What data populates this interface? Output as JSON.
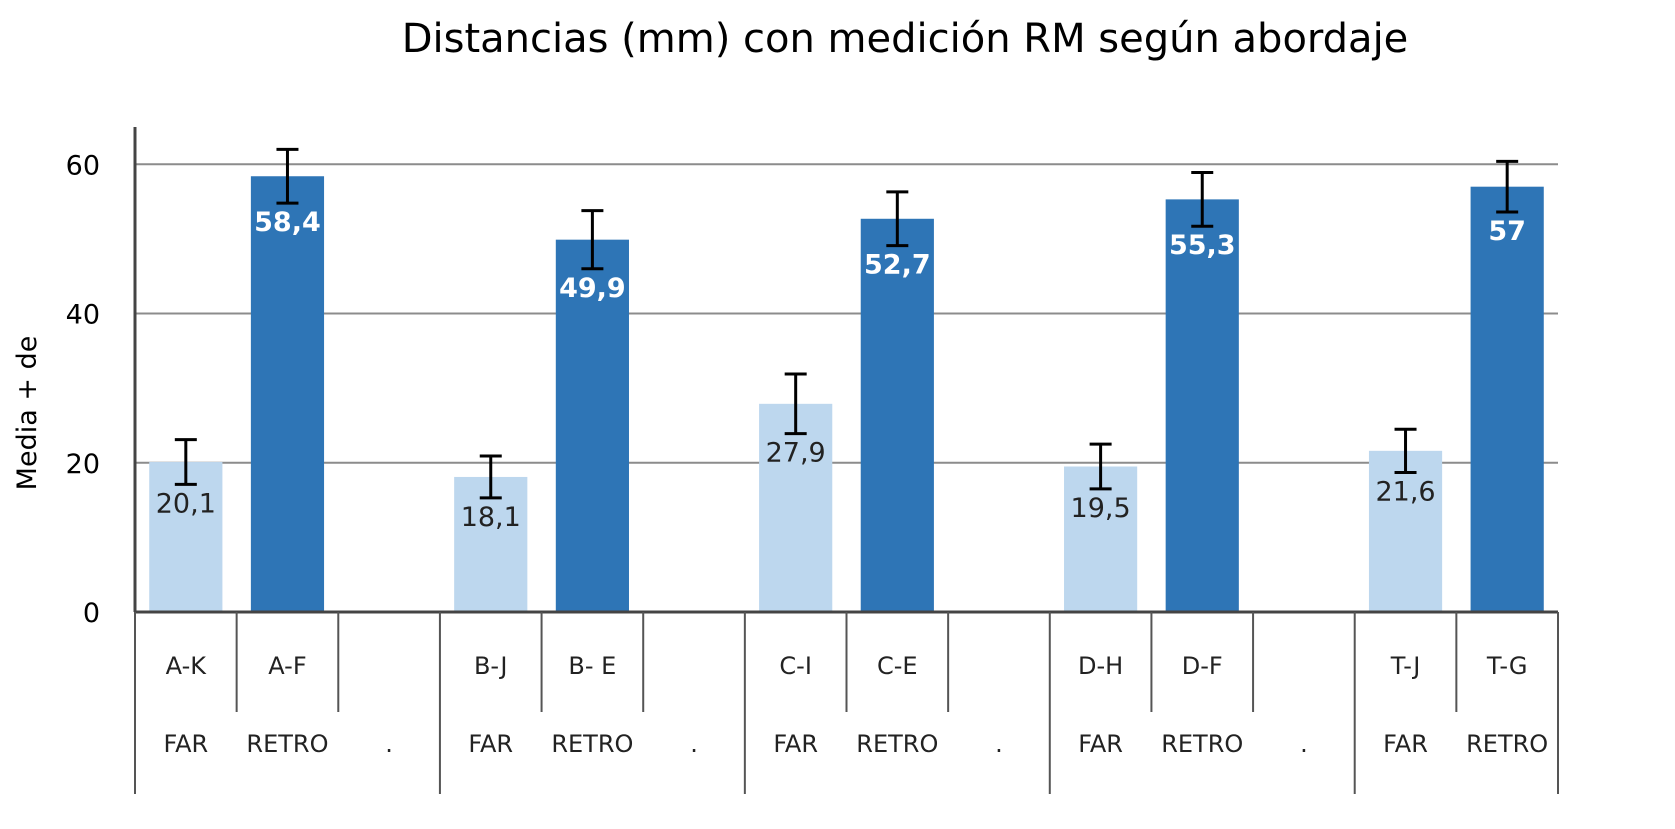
{
  "chart_data": {
    "type": "bar",
    "title": "Distancias (mm) con medición RM según abordaje",
    "ylabel": "Media + de",
    "xlabel": "",
    "ylim": [
      0,
      65
    ],
    "yticks": [
      0,
      20,
      40,
      60
    ],
    "grid": true,
    "colors": {
      "FAR": "#bdd7ee",
      "RETRO": "#2e75b6",
      "error": "#000000"
    },
    "slots": [
      {
        "label": "A-K",
        "group": "FAR",
        "value": 20.1,
        "error": 3.0,
        "data_label": "20,1"
      },
      {
        "label": "A-F",
        "group": "RETRO",
        "value": 58.4,
        "error": 3.6,
        "data_label": "58,4"
      },
      {
        "label": "",
        "group": ".",
        "value": null,
        "error": null,
        "data_label": ""
      },
      {
        "label": "B-J",
        "group": "FAR",
        "value": 18.1,
        "error": 2.8,
        "data_label": "18,1"
      },
      {
        "label": "B- E",
        "group": "RETRO",
        "value": 49.9,
        "error": 3.9,
        "data_label": "49,9"
      },
      {
        "label": "",
        "group": ".",
        "value": null,
        "error": null,
        "data_label": ""
      },
      {
        "label": "C-I",
        "group": "FAR",
        "value": 27.9,
        "error": 4.0,
        "data_label": "27,9"
      },
      {
        "label": "C-E",
        "group": "RETRO",
        "value": 52.7,
        "error": 3.6,
        "data_label": "52,7"
      },
      {
        "label": "",
        "group": ".",
        "value": null,
        "error": null,
        "data_label": ""
      },
      {
        "label": "D-H",
        "group": "FAR",
        "value": 19.5,
        "error": 3.0,
        "data_label": "19,5"
      },
      {
        "label": "D-F",
        "group": "RETRO",
        "value": 55.3,
        "error": 3.6,
        "data_label": "55,3"
      },
      {
        "label": "",
        "group": ".",
        "value": null,
        "error": null,
        "data_label": ""
      },
      {
        "label": "T-J",
        "group": "FAR",
        "value": 21.6,
        "error": 2.9,
        "data_label": "21,6"
      },
      {
        "label": "T-G",
        "group": "RETRO",
        "value": 57.0,
        "error": 3.4,
        "data_label": "57"
      }
    ]
  }
}
